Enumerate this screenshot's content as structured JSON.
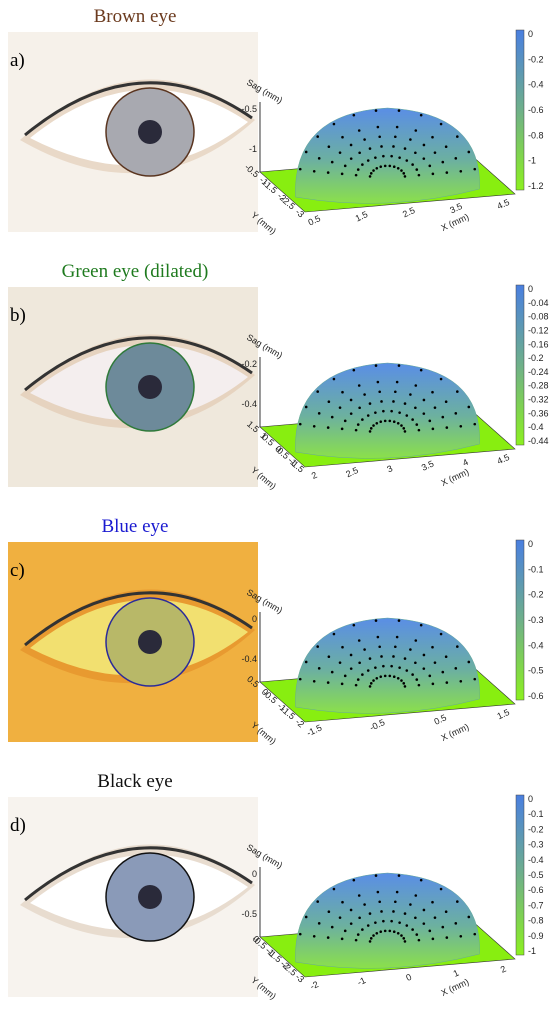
{
  "panels": [
    {
      "label": "a)",
      "title": "Brown eye",
      "title_color": "#6b3a1e",
      "colorbar_ticks": [
        "0",
        "-0.2",
        "-0.4",
        "-0.6",
        "-0.8",
        "-1",
        "-1.2"
      ],
      "sag_label": "Sag (mm)",
      "sag_ticks": [
        "-0.5",
        "-1"
      ],
      "y_label": "Y (mm)",
      "y_ticks": [
        "-0.5",
        "-1",
        "-1.5",
        "-2",
        "-2.5",
        "-3"
      ],
      "x_label": "X (mm)",
      "x_ticks": [
        "0.5",
        "1.5",
        "2.5",
        "3.5",
        "4.5"
      ]
    },
    {
      "label": "b)",
      "title": "Green eye (dilated)",
      "title_color": "#1e7a1e",
      "colorbar_ticks": [
        "0",
        "-0.04",
        "-0.08",
        "-0.12",
        "-0.16",
        "-0.2",
        "-0.24",
        "-0.28",
        "-0.32",
        "-0.36",
        "-0.4",
        "-0.44"
      ],
      "sag_label": "Sag (mm)",
      "sag_ticks": [
        "-0.2",
        "-0.4"
      ],
      "y_label": "Y (mm)",
      "y_ticks": [
        "1.5",
        "1",
        "0.5",
        "0",
        "-0.5",
        "-1",
        "-1.5"
      ],
      "x_label": "X (mm)",
      "x_ticks": [
        "2",
        "2.5",
        "3",
        "3.5",
        "4",
        "4.5"
      ]
    },
    {
      "label": "c)",
      "title": "Blue eye",
      "title_color": "#1a1ad0",
      "colorbar_ticks": [
        "0",
        "-0.1",
        "-0.2",
        "-0.3",
        "-0.4",
        "-0.5",
        "-0.6"
      ],
      "sag_label": "Sag (mm)",
      "sag_ticks": [
        "0",
        "-0.4"
      ],
      "y_label": "Y (mm)",
      "y_ticks": [
        "0.5",
        "0",
        "-0.5",
        "-1",
        "-1.5",
        "-2"
      ],
      "x_label": "X (mm)",
      "x_ticks": [
        "-1.5",
        "-0.5",
        "0.5",
        "1.5"
      ]
    },
    {
      "label": "d)",
      "title": "Black eye",
      "title_color": "#111111",
      "colorbar_ticks": [
        "0",
        "-0.1",
        "-0.2",
        "-0.3",
        "-0.4",
        "-0.5",
        "-0.6",
        "-0.7",
        "-0.8",
        "-0.9",
        "-1"
      ],
      "sag_label": "Sag (mm)",
      "sag_ticks": [
        "0",
        "-0.5"
      ],
      "y_label": "Y (mm)",
      "y_ticks": [
        "0",
        "-0.5",
        "-1",
        "-1.5",
        "-2",
        "-2.5",
        "-3"
      ],
      "x_label": "X (mm)",
      "x_ticks": [
        "-2",
        "-1",
        "0",
        "1",
        "2"
      ]
    }
  ]
}
